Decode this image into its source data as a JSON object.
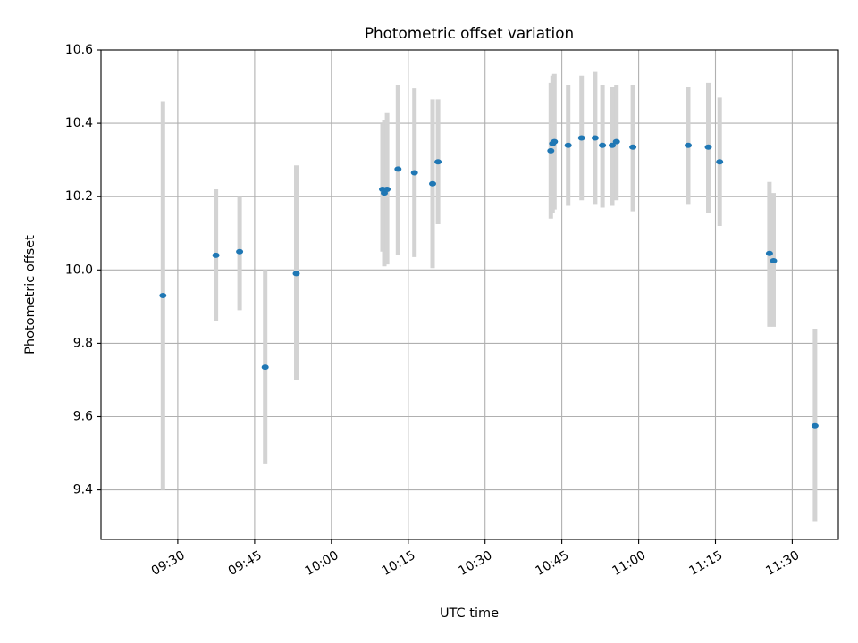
{
  "chart_data": {
    "type": "scatter",
    "title": "Photometric offset variation",
    "xlabel": "UTC time",
    "ylabel": "Photometric offset",
    "xlim": [
      "09:15",
      "11:39"
    ],
    "ylim": [
      9.265,
      10.6
    ],
    "x_ticks": [
      "09:30",
      "09:45",
      "10:00",
      "10:15",
      "10:30",
      "10:45",
      "11:00",
      "11:15",
      "11:30"
    ],
    "y_ticks": [
      "9.4",
      "9.6",
      "9.8",
      "10.0",
      "10.2",
      "10.4",
      "10.6"
    ],
    "grid": true,
    "colors": {
      "point": "#1f77b4",
      "errorbar": "#d3d3d3",
      "grid": "#b0b0b0"
    },
    "points": [
      {
        "x": "09:27:06",
        "y": 9.93,
        "ylow": 9.4,
        "yhigh": 10.46
      },
      {
        "x": "09:37:27",
        "y": 10.04,
        "ylow": 9.86,
        "yhigh": 10.22
      },
      {
        "x": "09:42:04",
        "y": 10.05,
        "ylow": 9.89,
        "yhigh": 10.2
      },
      {
        "x": "09:47:04",
        "y": 9.735,
        "ylow": 9.47,
        "yhigh": 10.0
      },
      {
        "x": "09:53:08",
        "y": 9.99,
        "ylow": 9.7,
        "yhigh": 10.285
      },
      {
        "x": "10:09:59",
        "y": 10.22,
        "ylow": 10.05,
        "yhigh": 10.4
      },
      {
        "x": "10:10:20",
        "y": 10.21,
        "ylow": 10.01,
        "yhigh": 10.41
      },
      {
        "x": "10:10:52",
        "y": 10.22,
        "ylow": 10.015,
        "yhigh": 10.43
      },
      {
        "x": "10:13:00",
        "y": 10.275,
        "ylow": 10.04,
        "yhigh": 10.505
      },
      {
        "x": "10:16:13",
        "y": 10.265,
        "ylow": 10.035,
        "yhigh": 10.495
      },
      {
        "x": "10:19:45",
        "y": 10.235,
        "ylow": 10.005,
        "yhigh": 10.465
      },
      {
        "x": "10:20:49",
        "y": 10.295,
        "ylow": 10.125,
        "yhigh": 10.465
      },
      {
        "x": "10:42:51",
        "y": 10.325,
        "ylow": 10.14,
        "yhigh": 10.51
      },
      {
        "x": "10:43:12",
        "y": 10.345,
        "ylow": 10.155,
        "yhigh": 10.53
      },
      {
        "x": "10:43:33",
        "y": 10.35,
        "ylow": 10.165,
        "yhigh": 10.535
      },
      {
        "x": "10:46:14",
        "y": 10.34,
        "ylow": 10.175,
        "yhigh": 10.505
      },
      {
        "x": "10:48:51",
        "y": 10.36,
        "ylow": 10.19,
        "yhigh": 10.53
      },
      {
        "x": "10:51:30",
        "y": 10.36,
        "ylow": 10.18,
        "yhigh": 10.54
      },
      {
        "x": "10:52:56",
        "y": 10.34,
        "ylow": 10.17,
        "yhigh": 10.505
      },
      {
        "x": "10:54:50",
        "y": 10.34,
        "ylow": 10.175,
        "yhigh": 10.5
      },
      {
        "x": "10:55:40",
        "y": 10.35,
        "ylow": 10.19,
        "yhigh": 10.505
      },
      {
        "x": "10:58:52",
        "y": 10.335,
        "ylow": 10.16,
        "yhigh": 10.505
      },
      {
        "x": "11:09:41",
        "y": 10.34,
        "ylow": 10.18,
        "yhigh": 10.5
      },
      {
        "x": "11:13:36",
        "y": 10.335,
        "ylow": 10.155,
        "yhigh": 10.51
      },
      {
        "x": "11:15:49",
        "y": 10.295,
        "ylow": 10.12,
        "yhigh": 10.47
      },
      {
        "x": "11:25:33",
        "y": 10.045,
        "ylow": 9.845,
        "yhigh": 10.24
      },
      {
        "x": "11:26:21",
        "y": 10.025,
        "ylow": 9.845,
        "yhigh": 10.21
      },
      {
        "x": "11:34:27",
        "y": 9.575,
        "ylow": 9.315,
        "yhigh": 9.84
      }
    ]
  }
}
